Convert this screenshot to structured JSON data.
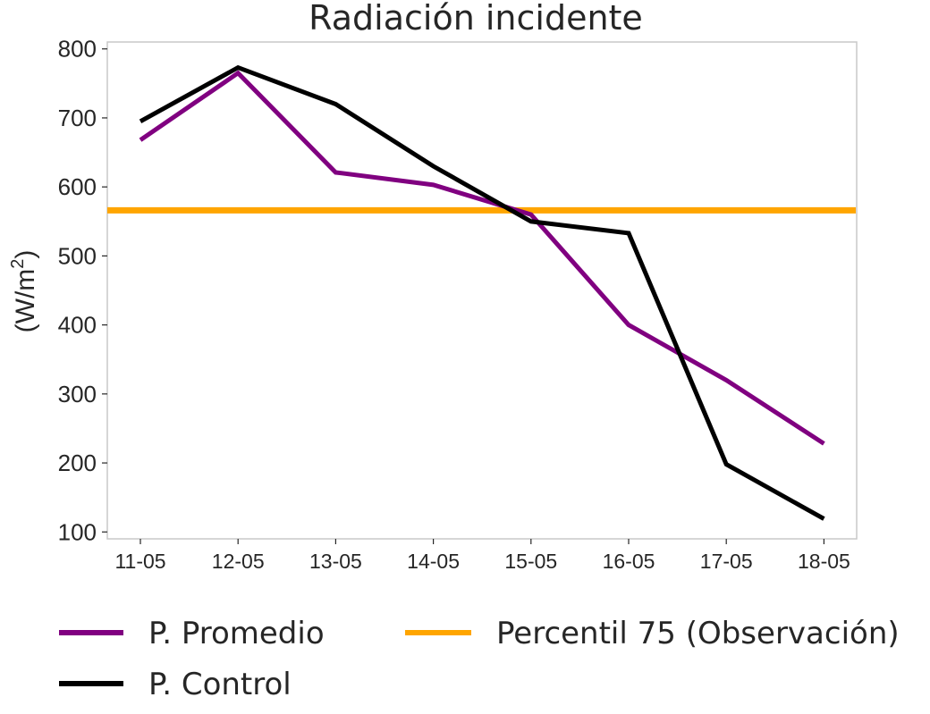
{
  "chart_data": {
    "type": "line",
    "title": "Radiación incidente",
    "ylabel": "(W/m",
    "ylabel_sup": "2",
    "ylabel_close": ")",
    "xlabel": "",
    "categories": [
      "11-05",
      "12-05",
      "13-05",
      "14-05",
      "15-05",
      "16-05",
      "17-05",
      "18-05"
    ],
    "ylim": [
      90,
      810
    ],
    "yticks": [
      100,
      200,
      300,
      400,
      500,
      600,
      700,
      800
    ],
    "grid": false,
    "legend_position": "bottom",
    "series": [
      {
        "name": "P. Promedio",
        "color": "#800080",
        "values": [
          668,
          765,
          621,
          603,
          560,
          400,
          320,
          228
        ]
      },
      {
        "name": "P. Control",
        "color": "#000000",
        "values": [
          695,
          773,
          720,
          630,
          550,
          533,
          198,
          119
        ]
      }
    ],
    "hlines": [
      {
        "name": "Percentil 75 (Observación)",
        "color": "#FFA500",
        "value": 566
      }
    ]
  }
}
